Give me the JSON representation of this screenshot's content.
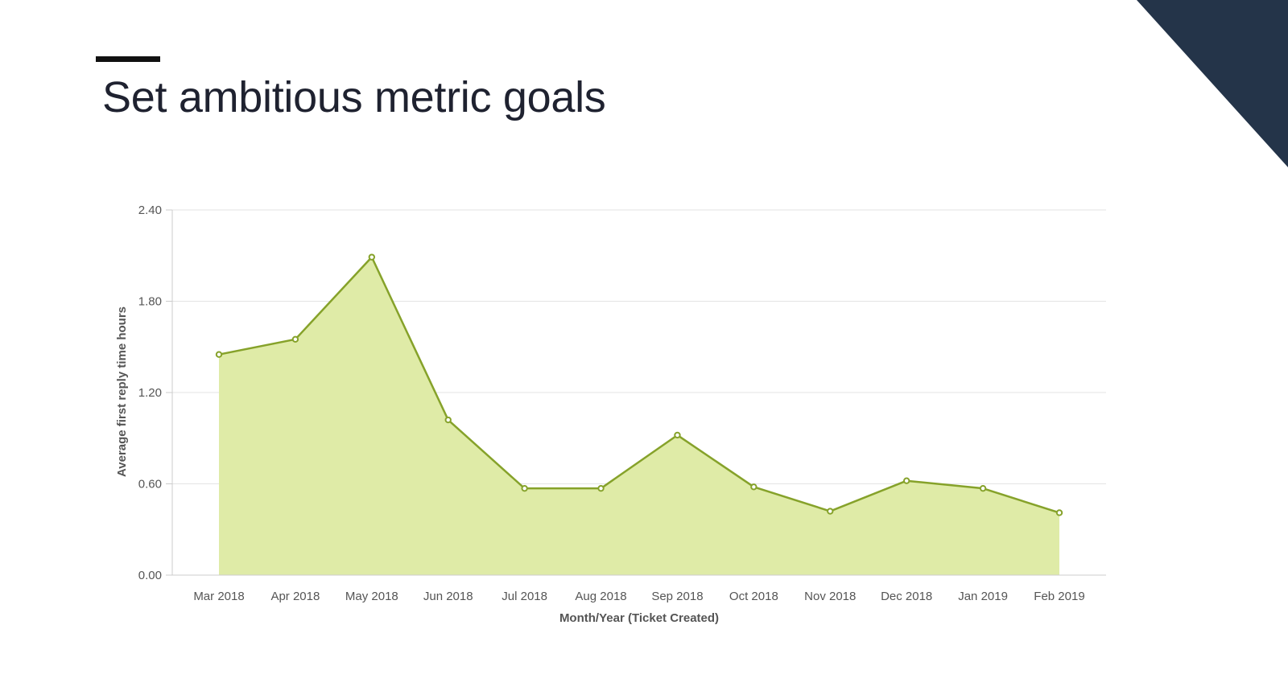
{
  "slide": {
    "title": "Set ambitious metric goals",
    "accent_color": "#243449",
    "title_rule_color": "#111111"
  },
  "chart_data": {
    "type": "area",
    "categories": [
      "Mar 2018",
      "Apr 2018",
      "May 2018",
      "Jun 2018",
      "Jul 2018",
      "Aug 2018",
      "Sep 2018",
      "Oct 2018",
      "Nov 2018",
      "Dec 2018",
      "Jan 2019",
      "Feb 2019"
    ],
    "series": [
      {
        "values": [
          1.45,
          1.55,
          2.09,
          1.02,
          0.57,
          0.57,
          0.92,
          0.58,
          0.42,
          0.62,
          0.57,
          0.41
        ],
        "line_color": "#86a22a",
        "fill_color": "#dfeba7"
      }
    ],
    "xlabel": "Month/Year (Ticket Created)",
    "ylabel": "Average first reply time hours",
    "ylim": [
      0,
      2.4
    ],
    "yticks": [
      "0.00",
      "0.60",
      "1.20",
      "1.80",
      "2.40"
    ],
    "grid": true,
    "legend": "none"
  }
}
